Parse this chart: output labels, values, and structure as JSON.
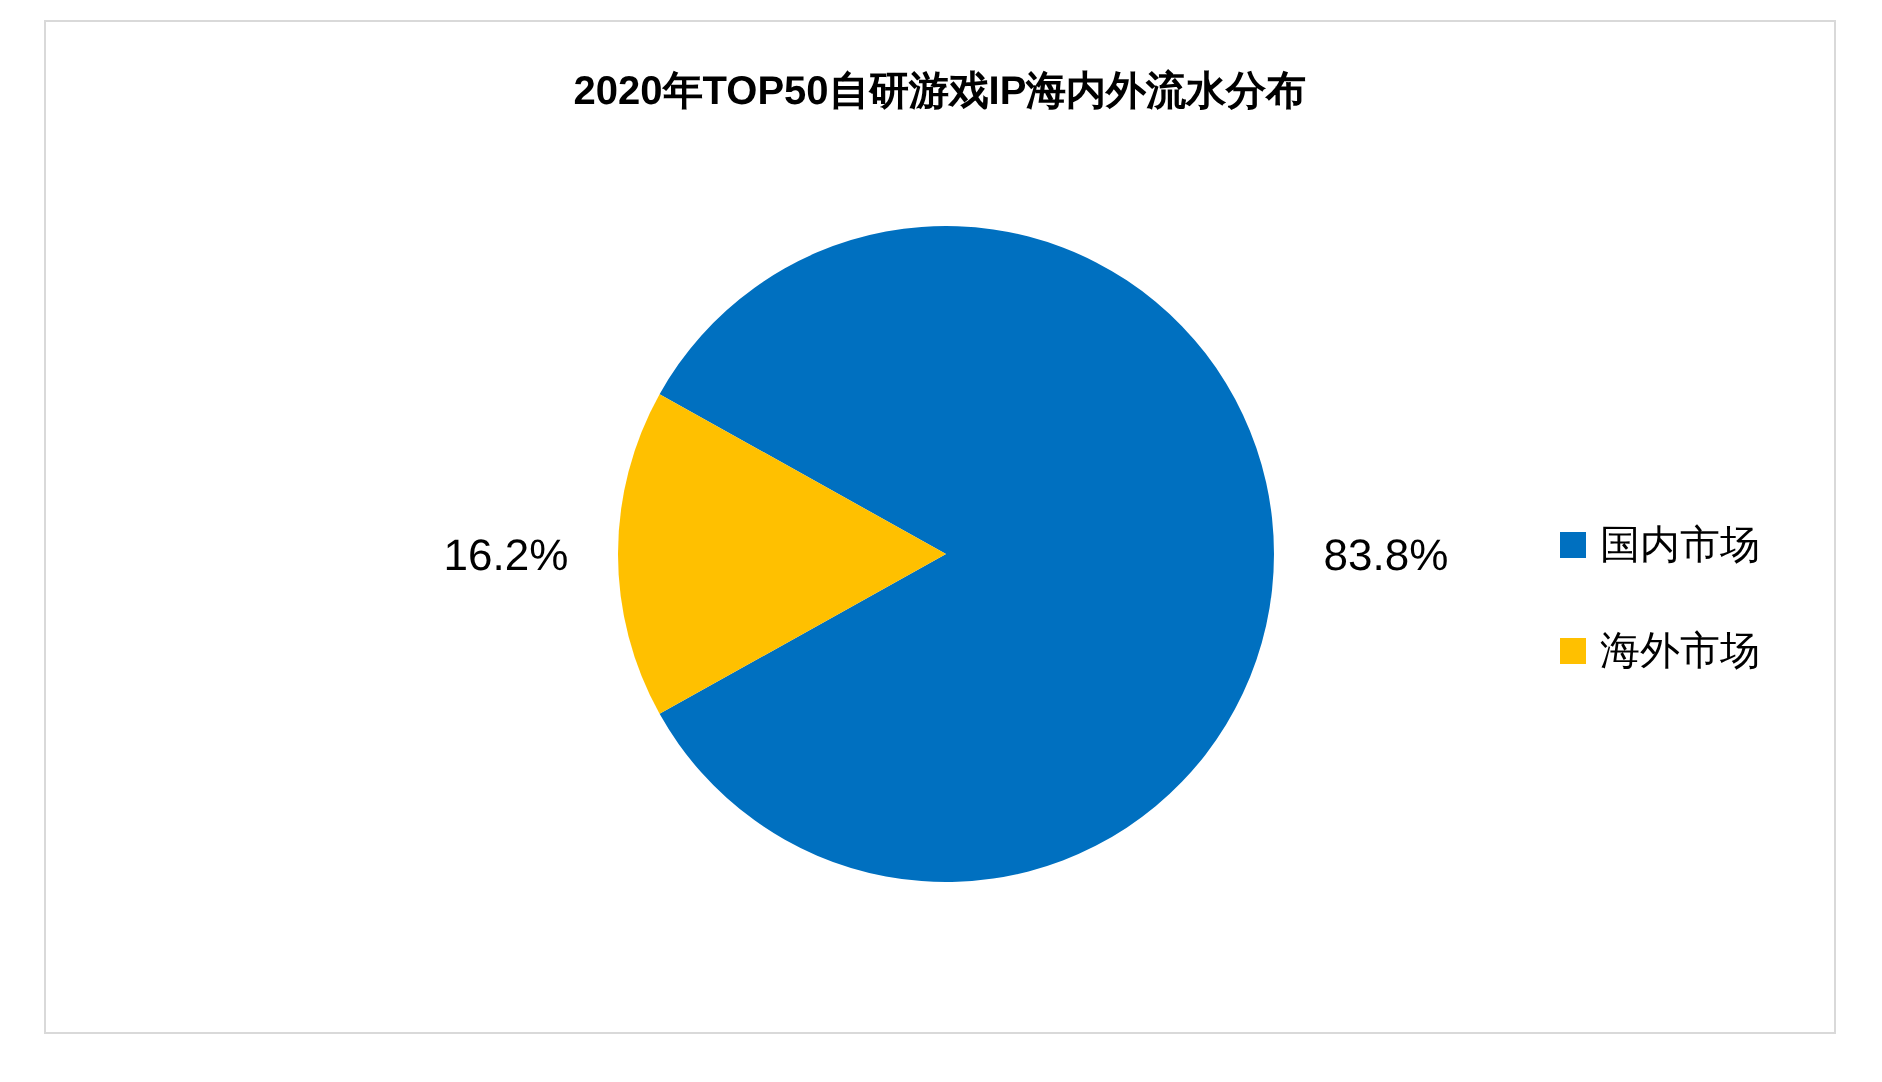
{
  "chart_data": {
    "type": "pie",
    "title": "2020年TOP50自研游戏IP海内外流水分布",
    "categories": [
      "国内市场",
      "海外市场"
    ],
    "values": [
      83.8,
      16.2
    ],
    "colors": [
      "#0070c0",
      "#ffc000"
    ],
    "value_labels": [
      "83.8%",
      "16.2%"
    ],
    "legend": "right"
  }
}
